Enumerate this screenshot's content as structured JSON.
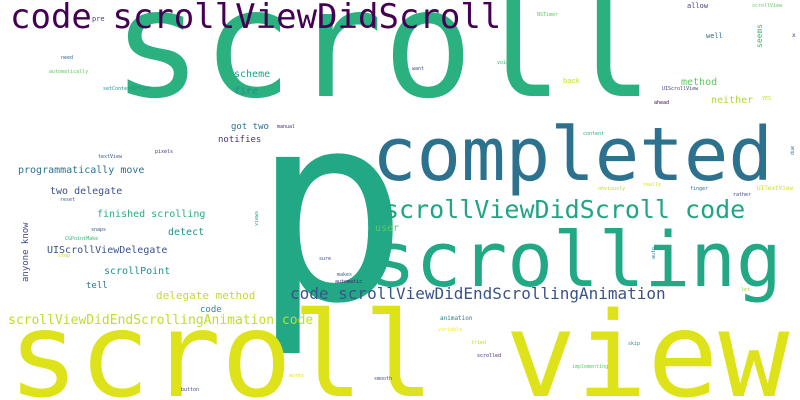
{
  "palette": {
    "purple": "#440154",
    "indigo": "#3b528b",
    "teal": "#2c728e",
    "green": "#21a585",
    "lime": "#5ec962",
    "yellow": "#dde318",
    "ochre": "#c8d63a"
  },
  "words": [
    {
      "text": "scroll",
      "color": "#2bb07f"
    },
    {
      "text": "p",
      "color": "#22a884"
    },
    {
      "text": "scroll view",
      "color": "#dde318"
    },
    {
      "text": "completed",
      "color": "#2c728e"
    },
    {
      "text": "scrolling",
      "color": "#22a884"
    },
    {
      "text": "code scrollViewDidScroll",
      "color": "#440154"
    },
    {
      "text": "scrollViewDidScroll code",
      "color": "#21a585"
    },
    {
      "text": "code scrollViewDidEndScrollingAnimation",
      "color": "#3b528b"
    },
    {
      "text": "scrollViewDidEndScrollingAnimation code",
      "color": "#bddf26"
    },
    {
      "text": "delegate method",
      "color": "#c8d63a"
    },
    {
      "text": "programmatically move",
      "color": "#2c728e"
    },
    {
      "text": "finished scrolling",
      "color": "#27ad81"
    },
    {
      "text": "UIScrollViewDelegate",
      "color": "#3b528b"
    },
    {
      "text": "anyone know",
      "color": "#3e4a89"
    },
    {
      "text": "two delegate",
      "color": "#3b528b"
    },
    {
      "text": "scrollPoint",
      "color": "#21918c"
    },
    {
      "text": "method",
      "color": "#5ec962"
    },
    {
      "text": "neither",
      "color": "#addc30"
    },
    {
      "text": "scheme",
      "color": "#1f9e89"
    },
    {
      "text": "fire",
      "color": "#21918c"
    },
    {
      "text": "got two",
      "color": "#2c728e"
    },
    {
      "text": "notifies",
      "color": "#46337e"
    },
    {
      "text": "detect",
      "color": "#21918c"
    },
    {
      "text": "user",
      "color": "#5ec962"
    },
    {
      "text": "tell",
      "color": "#2c728e"
    },
    {
      "text": "code",
      "color": "#21918c"
    },
    {
      "text": "seems",
      "color": "#35b779"
    },
    {
      "text": "well",
      "color": "#31688e"
    },
    {
      "text": "allow",
      "color": "#443983"
    },
    {
      "text": "pre",
      "color": "#414487"
    },
    {
      "text": "back",
      "color": "#c2df23"
    },
    {
      "text": "animation",
      "color": "#277f8e"
    },
    {
      "text": "NSTimer",
      "color": "#5ec962"
    },
    {
      "text": "scrollView",
      "color": "#5ec962"
    },
    {
      "text": "need",
      "color": "#31688e"
    },
    {
      "text": "automatically",
      "color": "#5ec962"
    },
    {
      "text": "setContentOffset",
      "color": "#21918c"
    },
    {
      "text": "want",
      "color": "#3e4989"
    },
    {
      "text": "void",
      "color": "#35b779"
    },
    {
      "text": "UIScrollView",
      "color": "#404387"
    },
    {
      "text": "ahead",
      "color": "#440154"
    },
    {
      "text": "pixels",
      "color": "#46307e"
    },
    {
      "text": "textView",
      "color": "#3b528b"
    },
    {
      "text": "manual",
      "color": "#472c7a"
    },
    {
      "text": "content",
      "color": "#29af7f"
    },
    {
      "text": "UITextView",
      "color": "#d2e21b"
    },
    {
      "text": "finger",
      "color": "#2c728e"
    },
    {
      "text": "really",
      "color": "#d8e219"
    },
    {
      "text": "obviously",
      "color": "#b8de29"
    },
    {
      "text": "rather",
      "color": "#3e4a89"
    },
    {
      "text": "reset",
      "color": "#31688e"
    },
    {
      "text": "snaps",
      "color": "#3b528b"
    },
    {
      "text": "CGPointMake",
      "color": "#35b779"
    },
    {
      "text": "stop",
      "color": "#c8d63a"
    },
    {
      "text": "sure",
      "color": "#3e4989"
    },
    {
      "text": "makes",
      "color": "#31688e"
    },
    {
      "text": "automatic",
      "color": "#482173"
    },
    {
      "text": "variable",
      "color": "#fde725"
    },
    {
      "text": "scrolled",
      "color": "#482475"
    },
    {
      "text": "implementing",
      "color": "#5ec962"
    },
    {
      "text": "smooth",
      "color": "#3b528b"
    },
    {
      "text": "button",
      "color": "#3e4989"
    },
    {
      "text": "works",
      "color": "#e5e419"
    },
    {
      "text": "skip",
      "color": "#21918c"
    },
    {
      "text": "tried",
      "color": "#b5de2b"
    },
    {
      "text": "let",
      "color": "#95d840"
    },
    {
      "text": "YES",
      "color": "#bddf26"
    },
    {
      "text": "due",
      "color": "#31688e"
    },
    {
      "text": "views",
      "color": "#20a486"
    },
    {
      "text": "x",
      "color": "#443983"
    },
    {
      "text": "auto",
      "color": "#2c728e"
    }
  ]
}
